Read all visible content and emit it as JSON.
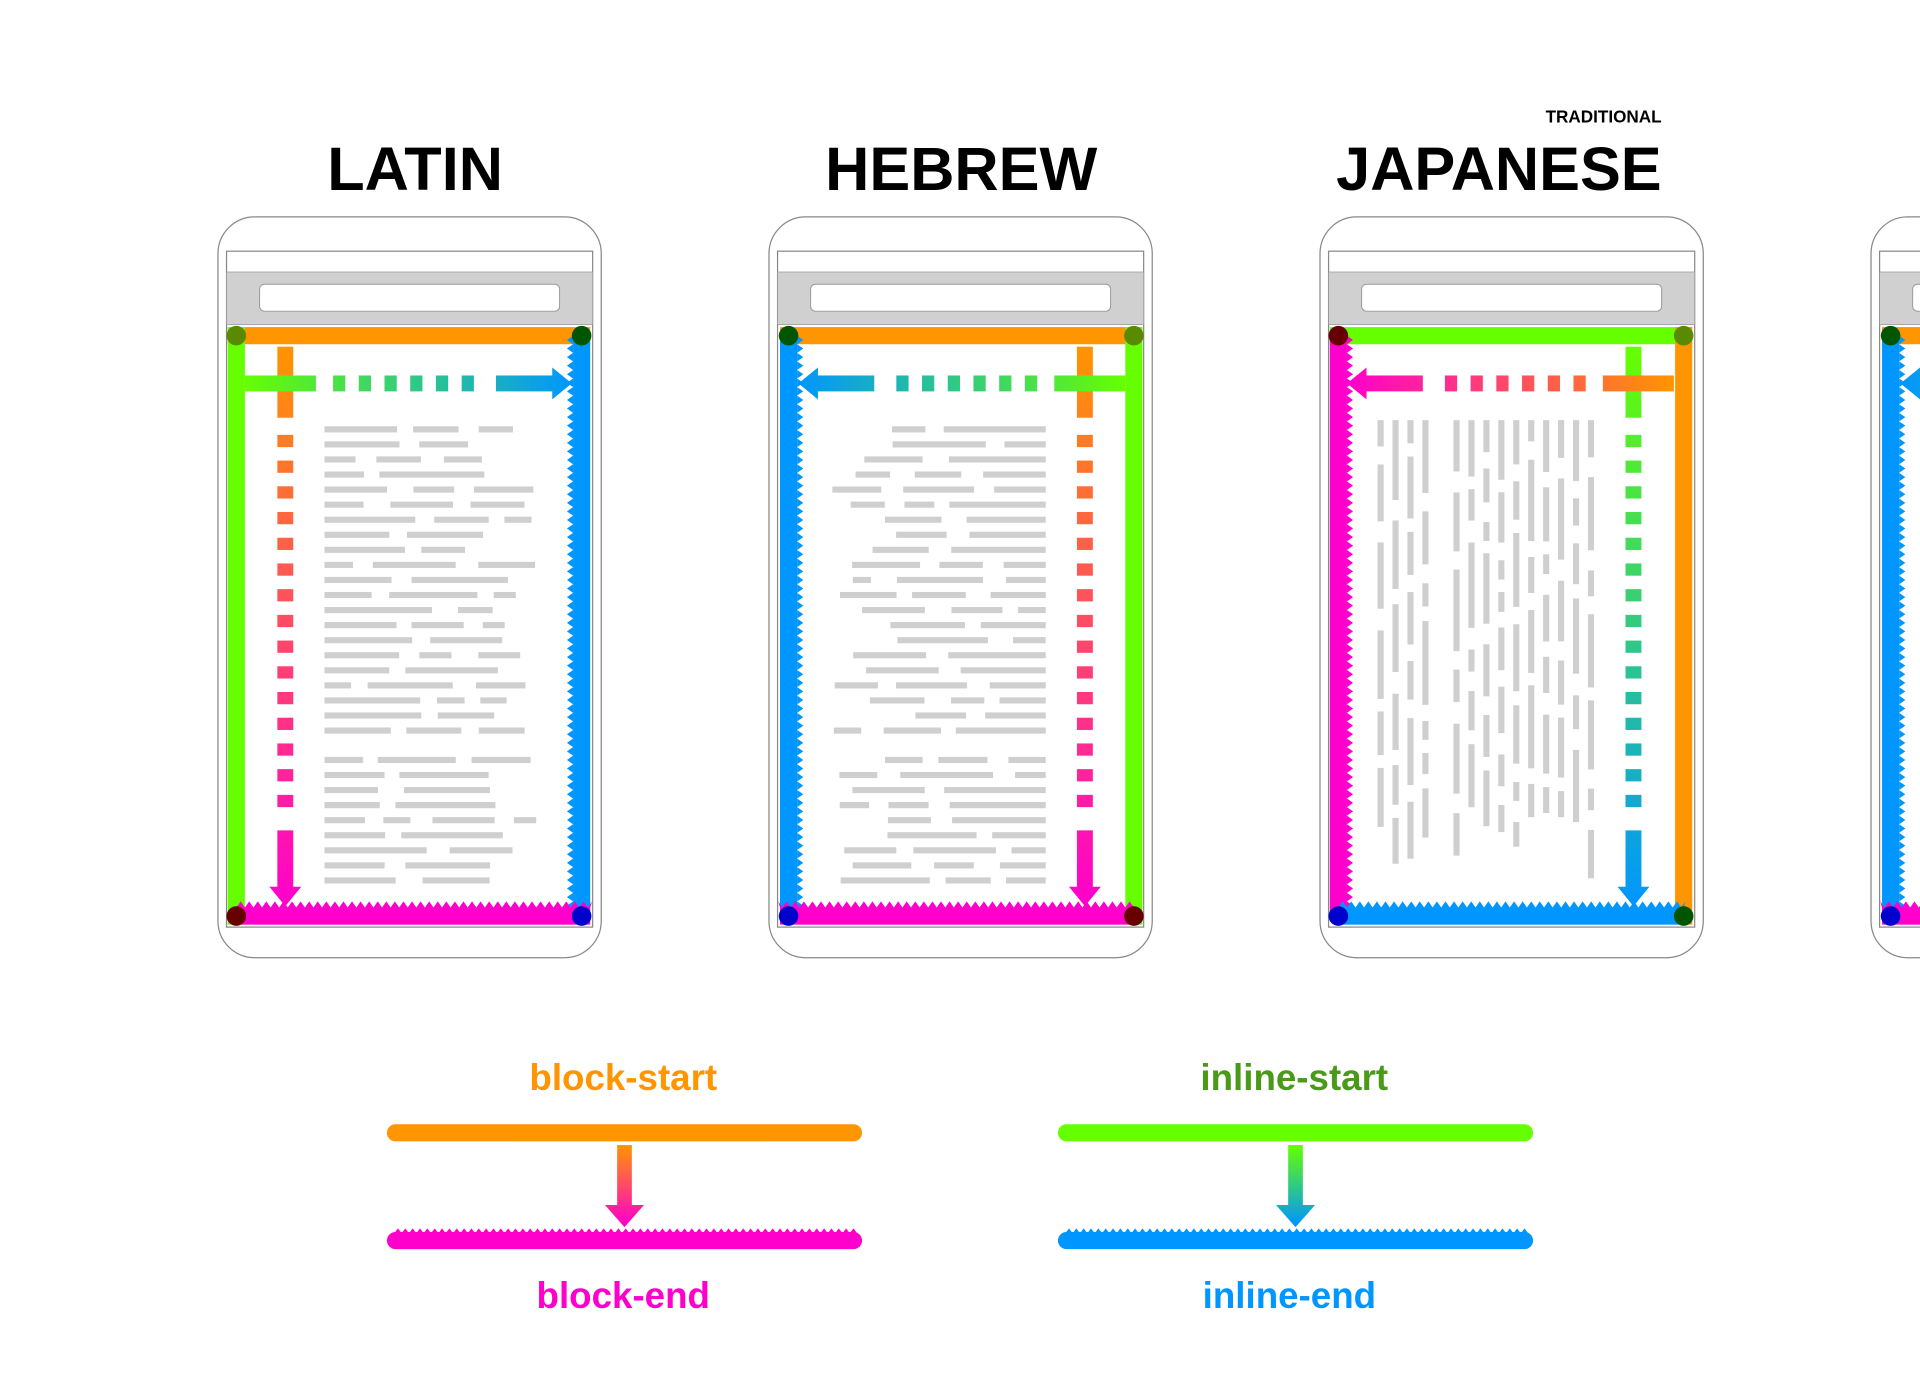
{
  "titles": {
    "latin": "LATIN",
    "hebrew": "HEBREW",
    "japanese": "JAPANESE",
    "japanese_prefix": "TRADITIONAL"
  },
  "legend": {
    "block_start": "block-start",
    "block_end": "block-end",
    "inline_start": "inline-start",
    "inline_end": "inline-end"
  },
  "colors": {
    "block_start": "#ff9500",
    "block_end": "#ff00cc",
    "inline_start": "#66ff00",
    "inline_end": "#0096ff",
    "inline_start_text": "#4a9a1a",
    "text_placeholder": "#cfcfcf",
    "chrome": "#d0d0d0"
  }
}
